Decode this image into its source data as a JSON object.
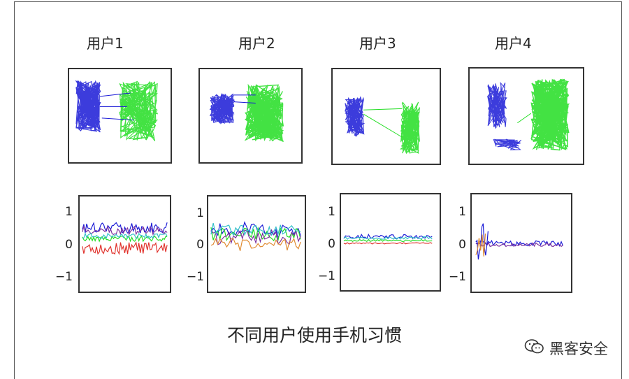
{
  "users": [
    {
      "label": "用户1"
    },
    {
      "label": "用户2"
    },
    {
      "label": "用户3"
    },
    {
      "label": "用户4"
    }
  ],
  "y_ticks": [
    "1",
    "0",
    "−1"
  ],
  "caption": "不同用户使用手机习惯",
  "watermark": {
    "text": "黑客安全",
    "icon": "wechat-icon"
  },
  "colors": {
    "blue": "#1a1ad6",
    "green": "#22dd22",
    "red": "#e0302a",
    "cyan": "#33c0c8",
    "purple": "#7a2f9f",
    "orange": "#e08a30"
  }
}
